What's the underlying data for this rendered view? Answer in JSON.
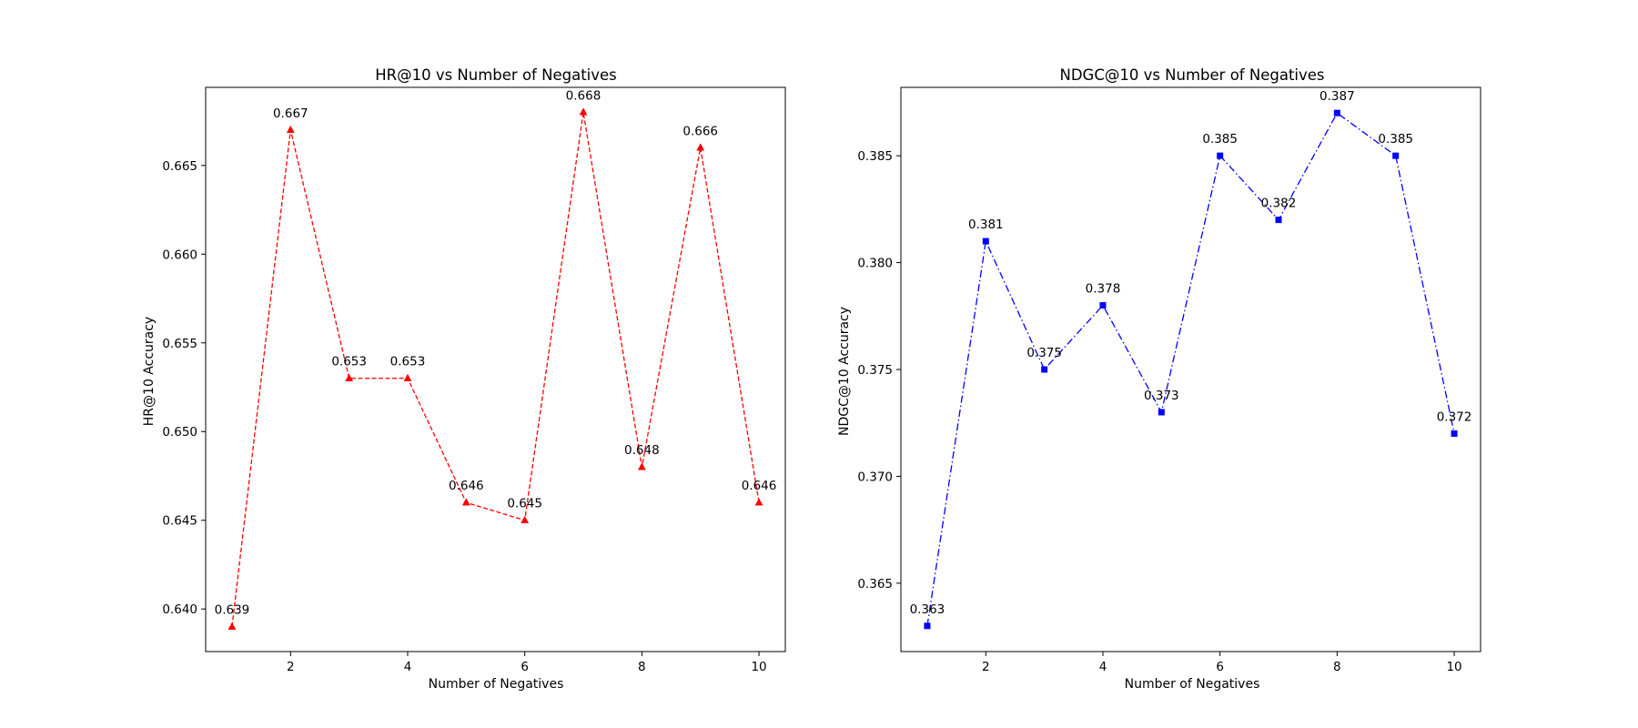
{
  "chart_data": [
    {
      "type": "line",
      "title": "HR@10 vs Number of Negatives",
      "xlabel": "Number of Negatives",
      "ylabel": "HR@10 Accuracy",
      "x": [
        1,
        2,
        3,
        4,
        5,
        6,
        7,
        8,
        9,
        10
      ],
      "series": [
        {
          "values": [
            0.639,
            0.667,
            0.653,
            0.653,
            0.646,
            0.645,
            0.668,
            0.648,
            0.666,
            0.646
          ]
        }
      ],
      "data_labels": [
        "0.639",
        "0.667",
        "0.653",
        "0.653",
        "0.646",
        "0.645",
        "0.668",
        "0.648",
        "0.666",
        "0.646"
      ],
      "xlim": [
        0.55,
        10.45
      ],
      "ylim": [
        0.6376,
        0.6694
      ],
      "xticks": [
        2,
        4,
        6,
        8,
        10
      ],
      "yticks": [
        0.64,
        0.645,
        0.65,
        0.655,
        0.66,
        0.665
      ],
      "ytick_labels": [
        "0.640",
        "0.645",
        "0.650",
        "0.655",
        "0.660",
        "0.665"
      ],
      "color": "#ff0000",
      "line_style": "dashed",
      "marker": "triangle",
      "grid": false
    },
    {
      "type": "line",
      "title": "NDGC@10 vs Number of Negatives",
      "xlabel": "Number of Negatives",
      "ylabel": "NDGC@10 Accuracy",
      "x": [
        1,
        2,
        3,
        4,
        5,
        6,
        7,
        8,
        9,
        10
      ],
      "series": [
        {
          "values": [
            0.363,
            0.381,
            0.375,
            0.378,
            0.373,
            0.385,
            0.382,
            0.387,
            0.385,
            0.372
          ]
        }
      ],
      "data_labels": [
        "0.363",
        "0.381",
        "0.375",
        "0.378",
        "0.373",
        "0.385",
        "0.382",
        "0.387",
        "0.385",
        "0.372"
      ],
      "xlim": [
        0.55,
        10.45
      ],
      "ylim": [
        0.3618,
        0.3882
      ],
      "xticks": [
        2,
        4,
        6,
        8,
        10
      ],
      "yticks": [
        0.365,
        0.37,
        0.375,
        0.38,
        0.385
      ],
      "ytick_labels": [
        "0.365",
        "0.370",
        "0.375",
        "0.380",
        "0.385"
      ],
      "color": "#0000ff",
      "line_style": "dash-dot",
      "marker": "square",
      "grid": false
    }
  ]
}
